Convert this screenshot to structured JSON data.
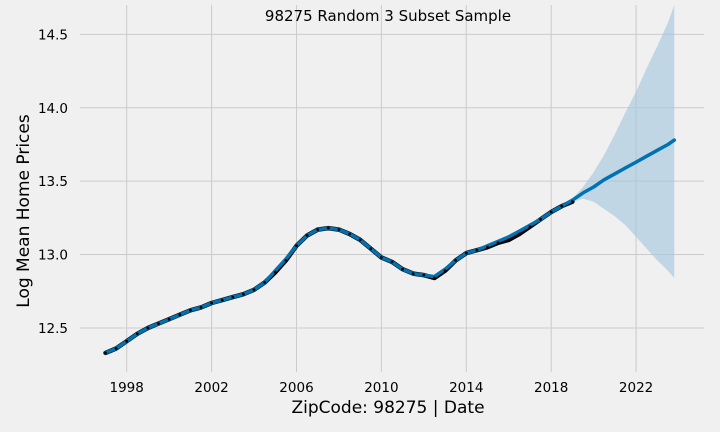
{
  "chart_data": {
    "type": "line",
    "title": "98275 Random 3 Subset Sample",
    "xlabel": "ZipCode: 98275 | Date",
    "ylabel": "Log Mean Home Prices",
    "xlim": [
      1995.8,
      2025.2
    ],
    "ylim": [
      12.2,
      14.7
    ],
    "x_ticks": [
      1998,
      2002,
      2006,
      2010,
      2014,
      2018,
      2022
    ],
    "x_tick_labels": [
      "1998",
      "2002",
      "2006",
      "2010",
      "2014",
      "2018",
      "2022"
    ],
    "y_ticks": [
      12.5,
      13.0,
      13.5,
      14.0,
      14.5
    ],
    "y_tick_labels": [
      "12.5",
      "13.0",
      "13.5",
      "14.0",
      "14.5"
    ],
    "grid": true,
    "colors": {
      "observed": "#000000",
      "forecast": "#0072b2",
      "interval": "#a6c8de",
      "background": "#f0f0f0",
      "grid": "#cbcbcb"
    },
    "series": [
      {
        "role": "observed",
        "x": [
          1997.0,
          1997.5,
          1998.0,
          1998.5,
          1999.0,
          1999.5,
          2000.0,
          2000.5,
          2001.0,
          2001.5,
          2002.0,
          2002.5,
          2003.0,
          2003.5,
          2004.0,
          2004.5,
          2005.0,
          2005.5,
          2006.0,
          2006.5,
          2007.0,
          2007.5,
          2008.0,
          2008.5,
          2009.0,
          2009.5,
          2010.0,
          2010.5,
          2011.0,
          2011.5,
          2012.0,
          2012.5,
          2013.0,
          2013.5,
          2014.0,
          2014.5,
          2015.0,
          2015.5,
          2016.0,
          2016.5,
          2017.0,
          2017.5,
          2018.0,
          2018.5,
          2019.0
        ],
        "y": [
          12.33,
          12.36,
          12.41,
          12.46,
          12.5,
          12.53,
          12.56,
          12.59,
          12.62,
          12.64,
          12.67,
          12.69,
          12.71,
          12.73,
          12.76,
          12.81,
          12.88,
          12.96,
          13.06,
          13.13,
          13.17,
          13.18,
          13.17,
          13.14,
          13.1,
          13.04,
          12.98,
          12.95,
          12.9,
          12.87,
          12.86,
          12.84,
          12.89,
          12.96,
          13.01,
          13.03,
          13.05,
          13.08,
          13.1,
          13.14,
          13.19,
          13.24,
          13.29,
          13.33,
          13.36
        ]
      },
      {
        "role": "forecast",
        "x": [
          1997.0,
          1997.5,
          1998.0,
          1998.5,
          1999.0,
          1999.5,
          2000.0,
          2000.5,
          2001.0,
          2001.5,
          2002.0,
          2002.5,
          2003.0,
          2003.5,
          2004.0,
          2004.5,
          2005.0,
          2005.5,
          2006.0,
          2006.5,
          2007.0,
          2007.5,
          2008.0,
          2008.5,
          2009.0,
          2009.5,
          2010.0,
          2010.5,
          2011.0,
          2011.5,
          2012.0,
          2012.5,
          2013.0,
          2013.5,
          2014.0,
          2014.5,
          2015.0,
          2015.5,
          2016.0,
          2016.5,
          2017.0,
          2017.5,
          2018.0,
          2018.5,
          2019.0,
          2019.5,
          2020.0,
          2020.5,
          2021.0,
          2021.5,
          2022.0,
          2022.5,
          2023.0,
          2023.5,
          2023.8
        ],
        "y": [
          12.33,
          12.36,
          12.41,
          12.46,
          12.5,
          12.53,
          12.56,
          12.59,
          12.62,
          12.64,
          12.67,
          12.69,
          12.71,
          12.73,
          12.76,
          12.81,
          12.89,
          12.97,
          13.06,
          13.13,
          13.17,
          13.18,
          13.17,
          13.14,
          13.1,
          13.04,
          12.98,
          12.95,
          12.9,
          12.87,
          12.86,
          12.85,
          12.9,
          12.96,
          13.01,
          13.03,
          13.06,
          13.09,
          13.12,
          13.16,
          13.2,
          13.24,
          13.29,
          13.33,
          13.37,
          13.42,
          13.46,
          13.51,
          13.55,
          13.59,
          13.63,
          13.67,
          13.71,
          13.75,
          13.78
        ]
      }
    ],
    "interval": {
      "x": [
        2019.0,
        2019.5,
        2020.0,
        2020.5,
        2021.0,
        2021.5,
        2022.0,
        2022.5,
        2023.0,
        2023.5,
        2023.8
      ],
      "lower": [
        13.36,
        13.38,
        13.36,
        13.31,
        13.26,
        13.2,
        13.12,
        13.04,
        12.96,
        12.89,
        12.84
      ],
      "upper": [
        13.38,
        13.46,
        13.56,
        13.68,
        13.82,
        13.97,
        14.11,
        14.27,
        14.42,
        14.58,
        14.7
      ]
    }
  }
}
